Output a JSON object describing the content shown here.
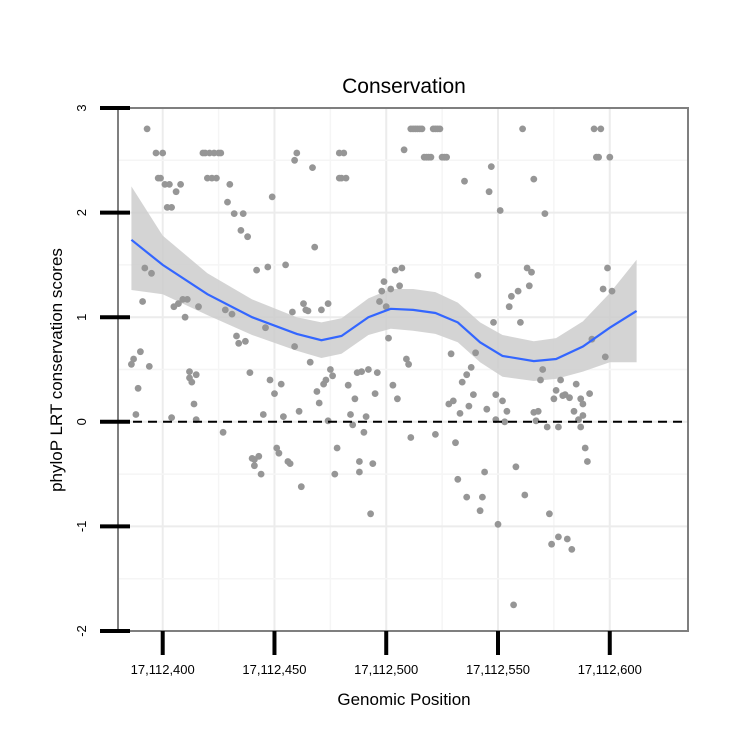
{
  "chart_data": {
    "type": "scatter",
    "title": "Conservation",
    "xlabel": "Genomic Position",
    "ylabel": "phyloP LRT conservation scores",
    "xlim": [
      17112380,
      17112635
    ],
    "ylim": [
      -2,
      3
    ],
    "x_ticks": [
      17112400,
      17112450,
      17112500,
      17112550,
      17112600
    ],
    "x_tick_labels": [
      "17,112,400",
      "17,112,450",
      "17,112,500",
      "17,112,550",
      "17,112,600"
    ],
    "y_ticks": [
      -2,
      -1,
      0,
      1,
      2,
      3
    ],
    "y_tick_labels": [
      "-2",
      "-1",
      "0",
      "1",
      "2",
      "3"
    ],
    "grid": true,
    "reference_line": {
      "y": 0,
      "style": "dashed"
    },
    "point_color": "#969696",
    "smooth_color": "#3366ff",
    "band_color": "#cccccc",
    "points": [
      [
        17112386,
        0.55
      ],
      [
        17112387,
        0.6
      ],
      [
        17112388,
        0.07
      ],
      [
        17112389,
        0.32
      ],
      [
        17112390,
        0.67
      ],
      [
        17112391,
        1.15
      ],
      [
        17112392,
        1.47
      ],
      [
        17112393,
        2.8
      ],
      [
        17112394,
        0.53
      ],
      [
        17112395,
        1.42
      ],
      [
        17112397,
        2.57
      ],
      [
        17112398,
        2.33
      ],
      [
        17112399,
        2.33
      ],
      [
        17112400,
        2.57
      ],
      [
        17112401,
        2.27
      ],
      [
        17112402,
        2.05
      ],
      [
        17112403,
        2.27
      ],
      [
        17112404,
        0.04
      ],
      [
        17112404,
        2.05
      ],
      [
        17112405,
        1.1
      ],
      [
        17112406,
        2.2
      ],
      [
        17112407,
        1.13
      ],
      [
        17112408,
        2.27
      ],
      [
        17112409,
        1.17
      ],
      [
        17112410,
        1.0
      ],
      [
        17112411,
        1.17
      ],
      [
        17112412,
        0.48
      ],
      [
        17112412,
        0.42
      ],
      [
        17112413,
        0.38
      ],
      [
        17112414,
        0.17
      ],
      [
        17112415,
        0.45
      ],
      [
        17112415,
        0.02
      ],
      [
        17112416,
        1.1
      ],
      [
        17112418,
        2.57
      ],
      [
        17112419,
        2.57
      ],
      [
        17112420,
        2.33
      ],
      [
        17112421,
        2.57
      ],
      [
        17112422,
        2.33
      ],
      [
        17112423,
        2.57
      ],
      [
        17112424,
        2.33
      ],
      [
        17112425,
        2.57
      ],
      [
        17112426,
        2.57
      ],
      [
        17112427,
        -0.1
      ],
      [
        17112428,
        1.07
      ],
      [
        17112429,
        2.1
      ],
      [
        17112430,
        2.27
      ],
      [
        17112431,
        1.03
      ],
      [
        17112432,
        1.99
      ],
      [
        17112433,
        0.82
      ],
      [
        17112434,
        0.75
      ],
      [
        17112435,
        1.83
      ],
      [
        17112436,
        1.99
      ],
      [
        17112437,
        0.77
      ],
      [
        17112438,
        1.77
      ],
      [
        17112439,
        0.47
      ],
      [
        17112440,
        -0.35
      ],
      [
        17112441,
        -0.42
      ],
      [
        17112441,
        -0.36
      ],
      [
        17112442,
        1.45
      ],
      [
        17112443,
        -0.33
      ],
      [
        17112444,
        -0.5
      ],
      [
        17112445,
        0.07
      ],
      [
        17112446,
        0.9
      ],
      [
        17112447,
        1.48
      ],
      [
        17112448,
        0.4
      ],
      [
        17112449,
        2.15
      ],
      [
        17112450,
        0.27
      ],
      [
        17112451,
        -0.25
      ],
      [
        17112452,
        -0.3
      ],
      [
        17112453,
        0.36
      ],
      [
        17112454,
        0.05
      ],
      [
        17112455,
        1.5
      ],
      [
        17112456,
        -0.38
      ],
      [
        17112457,
        -0.4
      ],
      [
        17112458,
        1.05
      ],
      [
        17112459,
        2.5
      ],
      [
        17112460,
        2.57
      ],
      [
        17112461,
        0.1
      ],
      [
        17112462,
        -0.62
      ],
      [
        17112463,
        1.13
      ],
      [
        17112464,
        1.07
      ],
      [
        17112465,
        1.06
      ],
      [
        17112466,
        0.57
      ],
      [
        17112467,
        2.43
      ],
      [
        17112468,
        1.67
      ],
      [
        17112469,
        0.29
      ],
      [
        17112470,
        0.18
      ],
      [
        17112471,
        1.07
      ],
      [
        17112472,
        0.36
      ],
      [
        17112473,
        0.4
      ],
      [
        17112474,
        0.01
      ],
      [
        17112474,
        1.13
      ],
      [
        17112475,
        0.5
      ],
      [
        17112476,
        0.44
      ],
      [
        17112477,
        -0.5
      ],
      [
        17112478,
        -0.25
      ],
      [
        17112479,
        2.57
      ],
      [
        17112479,
        2.33
      ],
      [
        17112480,
        2.33
      ],
      [
        17112481,
        2.57
      ],
      [
        17112482,
        2.33
      ],
      [
        17112483,
        0.35
      ],
      [
        17112484,
        0.07
      ],
      [
        17112485,
        -0.03
      ],
      [
        17112486,
        0.22
      ],
      [
        17112487,
        0.47
      ],
      [
        17112488,
        -0.38
      ],
      [
        17112488,
        -0.48
      ],
      [
        17112489,
        0.48
      ],
      [
        17112490,
        -0.1
      ],
      [
        17112491,
        0.05
      ],
      [
        17112492,
        0.5
      ],
      [
        17112493,
        -0.88
      ],
      [
        17112494,
        -0.4
      ],
      [
        17112495,
        0.27
      ],
      [
        17112496,
        0.47
      ],
      [
        17112497,
        1.15
      ],
      [
        17112498,
        1.25
      ],
      [
        17112499,
        1.34
      ],
      [
        17112500,
        1.1
      ],
      [
        17112501,
        0.8
      ],
      [
        17112502,
        1.27
      ],
      [
        17112503,
        0.35
      ],
      [
        17112504,
        1.45
      ],
      [
        17112505,
        0.22
      ],
      [
        17112506,
        1.3
      ],
      [
        17112507,
        1.47
      ],
      [
        17112508,
        2.6
      ],
      [
        17112509,
        0.6
      ],
      [
        17112510,
        0.55
      ],
      [
        17112511,
        2.8
      ],
      [
        17112512,
        2.8
      ],
      [
        17112513,
        2.8
      ],
      [
        17112514,
        2.8
      ],
      [
        17112515,
        2.8
      ],
      [
        17112516,
        2.8
      ],
      [
        17112517,
        2.53
      ],
      [
        17112518,
        2.53
      ],
      [
        17112519,
        2.53
      ],
      [
        17112520,
        2.53
      ],
      [
        17112521,
        2.8
      ],
      [
        17112522,
        2.8
      ],
      [
        17112523,
        2.8
      ],
      [
        17112524,
        2.8
      ],
      [
        17112525,
        2.53
      ],
      [
        17112526,
        2.53
      ],
      [
        17112527,
        2.53
      ],
      [
        17112528,
        0.17
      ],
      [
        17112529,
        0.65
      ],
      [
        17112530,
        0.2
      ],
      [
        17112531,
        -0.2
      ],
      [
        17112532,
        -0.55
      ],
      [
        17112533,
        0.08
      ],
      [
        17112534,
        0.38
      ],
      [
        17112535,
        2.3
      ],
      [
        17112536,
        -0.72
      ],
      [
        17112537,
        0.15
      ],
      [
        17112538,
        0.52
      ],
      [
        17112539,
        0.26
      ],
      [
        17112540,
        0.66
      ],
      [
        17112541,
        1.4
      ],
      [
        17112542,
        -0.85
      ],
      [
        17112543,
        -0.72
      ],
      [
        17112544,
        -0.48
      ],
      [
        17112545,
        0.12
      ],
      [
        17112546,
        2.2
      ],
      [
        17112547,
        2.44
      ],
      [
        17112548,
        0.95
      ],
      [
        17112549,
        0.26
      ],
      [
        17112550,
        -0.98
      ],
      [
        17112551,
        2.02
      ],
      [
        17112552,
        0.2
      ],
      [
        17112553,
        0.0
      ],
      [
        17112554,
        0.1
      ],
      [
        17112555,
        1.1
      ],
      [
        17112556,
        1.2
      ],
      [
        17112557,
        -1.75
      ],
      [
        17112558,
        -0.43
      ],
      [
        17112559,
        1.25
      ],
      [
        17112560,
        0.95
      ],
      [
        17112561,
        2.8
      ],
      [
        17112562,
        -0.7
      ],
      [
        17112563,
        1.47
      ],
      [
        17112564,
        1.3
      ],
      [
        17112565,
        1.43
      ],
      [
        17112566,
        2.32
      ],
      [
        17112567,
        0.01
      ],
      [
        17112568,
        0.1
      ],
      [
        17112569,
        0.4
      ],
      [
        17112570,
        0.5
      ],
      [
        17112571,
        1.99
      ],
      [
        17112572,
        -0.05
      ],
      [
        17112573,
        -0.88
      ],
      [
        17112574,
        -1.17
      ],
      [
        17112575,
        0.22
      ],
      [
        17112576,
        0.3
      ],
      [
        17112577,
        -1.1
      ],
      [
        17112578,
        0.4
      ],
      [
        17112579,
        0.25
      ],
      [
        17112580,
        0.26
      ],
      [
        17112581,
        -1.12
      ],
      [
        17112582,
        0.23
      ],
      [
        17112583,
        -1.22
      ],
      [
        17112584,
        0.1
      ],
      [
        17112585,
        0.36
      ],
      [
        17112586,
        0.02
      ],
      [
        17112587,
        0.22
      ],
      [
        17112588,
        0.17
      ],
      [
        17112589,
        -0.25
      ],
      [
        17112590,
        -0.38
      ],
      [
        17112591,
        0.27
      ],
      [
        17112592,
        0.79
      ],
      [
        17112593,
        2.8
      ],
      [
        17112594,
        2.53
      ],
      [
        17112595,
        2.53
      ],
      [
        17112596,
        2.8
      ],
      [
        17112597,
        1.27
      ],
      [
        17112598,
        0.62
      ],
      [
        17112599,
        1.47
      ],
      [
        17112600,
        2.53
      ],
      [
        17112601,
        1.25
      ],
      [
        17112587,
        -0.05
      ],
      [
        17112588,
        0.06
      ],
      [
        17112577,
        -0.05
      ],
      [
        17112566,
        0.09
      ],
      [
        17112549,
        0.02
      ],
      [
        17112536,
        0.45
      ],
      [
        17112522,
        -0.12
      ],
      [
        17112511,
        -0.15
      ],
      [
        17112459,
        0.72
      ]
    ],
    "smooth_line": [
      [
        17112386,
        1.74
      ],
      [
        17112400,
        1.5
      ],
      [
        17112420,
        1.22
      ],
      [
        17112440,
        1.0
      ],
      [
        17112460,
        0.84
      ],
      [
        17112471,
        0.78
      ],
      [
        17112480,
        0.82
      ],
      [
        17112492,
        1.0
      ],
      [
        17112502,
        1.08
      ],
      [
        17112512,
        1.07
      ],
      [
        17112522,
        1.04
      ],
      [
        17112532,
        0.95
      ],
      [
        17112542,
        0.76
      ],
      [
        17112552,
        0.63
      ],
      [
        17112566,
        0.58
      ],
      [
        17112576,
        0.6
      ],
      [
        17112588,
        0.72
      ],
      [
        17112600,
        0.9
      ],
      [
        17112612,
        1.06
      ]
    ],
    "confidence_band": {
      "upper": [
        [
          17112386,
          2.25
        ],
        [
          17112400,
          1.78
        ],
        [
          17112420,
          1.42
        ],
        [
          17112440,
          1.17
        ],
        [
          17112460,
          1.0
        ],
        [
          17112471,
          0.95
        ],
        [
          17112480,
          0.99
        ],
        [
          17112492,
          1.18
        ],
        [
          17112502,
          1.27
        ],
        [
          17112512,
          1.27
        ],
        [
          17112522,
          1.24
        ],
        [
          17112532,
          1.14
        ],
        [
          17112542,
          0.95
        ],
        [
          17112552,
          0.83
        ],
        [
          17112566,
          0.77
        ],
        [
          17112576,
          0.8
        ],
        [
          17112588,
          0.96
        ],
        [
          17112600,
          1.23
        ],
        [
          17112612,
          1.55
        ]
      ],
      "lower": [
        [
          17112386,
          1.26
        ],
        [
          17112400,
          1.22
        ],
        [
          17112420,
          1.02
        ],
        [
          17112440,
          0.83
        ],
        [
          17112460,
          0.68
        ],
        [
          17112471,
          0.61
        ],
        [
          17112480,
          0.65
        ],
        [
          17112492,
          0.83
        ],
        [
          17112502,
          0.89
        ],
        [
          17112512,
          0.87
        ],
        [
          17112522,
          0.84
        ],
        [
          17112532,
          0.76
        ],
        [
          17112542,
          0.57
        ],
        [
          17112552,
          0.43
        ],
        [
          17112566,
          0.39
        ],
        [
          17112576,
          0.41
        ],
        [
          17112588,
          0.48
        ],
        [
          17112600,
          0.57
        ],
        [
          17112612,
          0.57
        ]
      ]
    }
  }
}
